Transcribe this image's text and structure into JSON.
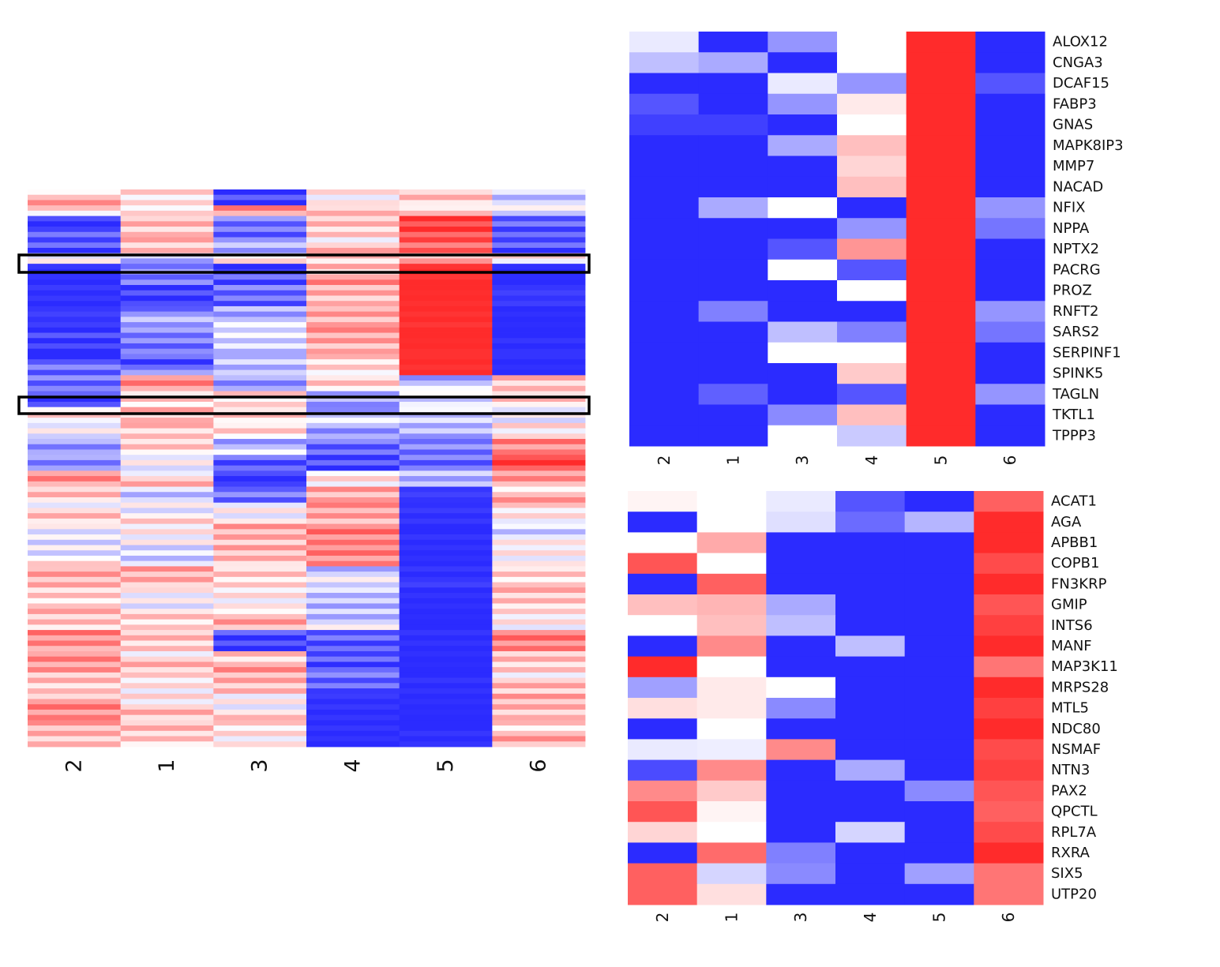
{
  "colors": {
    "low": "#2b2bff",
    "mid": "#ffffff",
    "high": "#ff2b2b",
    "highlight_box": "#000000"
  },
  "chart_data": [
    {
      "id": "overview",
      "type": "heatmap",
      "title": "",
      "columns": [
        "2",
        "1",
        "3",
        "4",
        "5",
        "6"
      ],
      "note": "Overview heatmap of many genes; values are approximate row-band levels (-1 = blue, +1 = red).",
      "bands": [
        {
          "rows": 3,
          "values": [
            0.3,
            0.25,
            -0.8,
            0.1,
            0.3,
            -0.3
          ]
        },
        {
          "rows": 2,
          "values": [
            0.1,
            0.05,
            0.4,
            0.15,
            0.35,
            0.0
          ]
        },
        {
          "rows": 4,
          "values": [
            -0.9,
            0.4,
            -0.6,
            0.3,
            0.9,
            -0.8
          ]
        },
        {
          "rows": 3,
          "values": [
            -0.85,
            0.2,
            -0.5,
            0.2,
            0.85,
            -0.7
          ]
        },
        {
          "rows": 2,
          "values": [
            0.05,
            -0.3,
            0.1,
            0.2,
            0.3,
            0.0
          ]
        },
        {
          "rows": 4,
          "values": [
            -1.0,
            -0.7,
            -0.9,
            0.4,
            1.0,
            -1.0
          ]
        },
        {
          "rows": 4,
          "values": [
            -0.95,
            -0.9,
            -0.7,
            0.3,
            1.0,
            -0.95
          ]
        },
        {
          "rows": 4,
          "values": [
            -0.95,
            -0.5,
            -0.3,
            0.5,
            1.0,
            -1.0
          ]
        },
        {
          "rows": 5,
          "values": [
            -0.9,
            -0.6,
            -0.2,
            0.35,
            1.0,
            -1.0
          ]
        },
        {
          "rows": 4,
          "values": [
            -0.8,
            -0.7,
            -0.2,
            0.25,
            1.0,
            -1.0
          ]
        },
        {
          "rows": 3,
          "values": [
            -0.7,
            0.5,
            -0.6,
            0.1,
            -0.3,
            0.4
          ]
        },
        {
          "rows": 3,
          "values": [
            -0.8,
            0.3,
            0.2,
            -0.4,
            -0.2,
            0.2
          ]
        },
        {
          "rows": 3,
          "values": [
            0.1,
            0.2,
            0.1,
            -0.3,
            -0.1,
            0.05
          ]
        },
        {
          "rows": 3,
          "values": [
            0.05,
            0.3,
            0.2,
            -0.5,
            -0.4,
            0.0
          ]
        },
        {
          "rows": 3,
          "values": [
            -0.6,
            0.1,
            -0.3,
            -0.6,
            -0.5,
            0.6
          ]
        },
        {
          "rows": 3,
          "values": [
            -0.5,
            0.0,
            -0.8,
            -0.9,
            -0.8,
            0.8
          ]
        },
        {
          "rows": 3,
          "values": [
            0.4,
            0.2,
            -0.9,
            0.2,
            -0.3,
            0.5
          ]
        },
        {
          "rows": 3,
          "values": [
            0.3,
            -0.3,
            -0.7,
            0.3,
            -0.95,
            0.3
          ]
        },
        {
          "rows": 4,
          "values": [
            0.15,
            0.05,
            0.1,
            0.5,
            -0.95,
            0.1
          ]
        },
        {
          "rows": 4,
          "values": [
            -0.1,
            0.0,
            0.3,
            0.5,
            -1.0,
            -0.1
          ]
        },
        {
          "rows": 4,
          "values": [
            0.0,
            -0.1,
            0.4,
            0.6,
            -1.0,
            0.0
          ]
        },
        {
          "rows": 4,
          "values": [
            0.35,
            0.3,
            0.1,
            -0.2,
            -0.95,
            0.3
          ]
        },
        {
          "rows": 4,
          "values": [
            0.3,
            0.05,
            0.1,
            -0.3,
            -1.0,
            0.2
          ]
        },
        {
          "rows": 4,
          "values": [
            0.2,
            0.1,
            0.3,
            -0.2,
            -1.0,
            0.15
          ]
        },
        {
          "rows": 4,
          "values": [
            0.6,
            0.3,
            -0.9,
            -0.8,
            -1.0,
            0.5
          ]
        },
        {
          "rows": 4,
          "values": [
            0.4,
            0.2,
            0.35,
            -0.7,
            -1.0,
            0.3
          ]
        },
        {
          "rows": 4,
          "values": [
            0.3,
            0.1,
            0.3,
            -0.8,
            -1.0,
            0.2
          ]
        },
        {
          "rows": 5,
          "values": [
            0.45,
            0.2,
            0.1,
            -0.95,
            -1.0,
            0.35
          ]
        },
        {
          "rows": 5,
          "values": [
            0.35,
            0.25,
            0.05,
            -1.0,
            -1.0,
            0.3
          ]
        }
      ],
      "highlight_boxes": [
        "upper",
        "lower"
      ]
    },
    {
      "id": "cluster_top",
      "type": "heatmap",
      "title": "",
      "columns": [
        "2",
        "1",
        "3",
        "4",
        "5",
        "6"
      ],
      "rows": [
        "ALOX12",
        "CNGA3",
        "DCAF15",
        "FABP3",
        "GNAS",
        "MAPK8IP3",
        "MMP7",
        "NACAD",
        "NFIX",
        "NPPA",
        "NPTX2",
        "PACRG",
        "PROZ",
        "RNFT2",
        "SARS2",
        "SERPINF1",
        "SPINK5",
        "TAGLN",
        "TKTL1",
        "TPPP3"
      ],
      "values": [
        [
          -0.1,
          -1.0,
          -0.5,
          0.0,
          1.0,
          -1.0
        ],
        [
          -0.3,
          -0.4,
          -1.0,
          0.0,
          1.0,
          -1.0
        ],
        [
          -1.0,
          -1.0,
          -0.1,
          -0.5,
          1.0,
          -0.8
        ],
        [
          -0.8,
          -1.0,
          -0.5,
          0.1,
          1.0,
          -1.0
        ],
        [
          -0.9,
          -0.9,
          -1.0,
          0.0,
          1.0,
          -1.0
        ],
        [
          -1.0,
          -1.0,
          -0.4,
          0.3,
          1.0,
          -1.0
        ],
        [
          -1.0,
          -1.0,
          -1.0,
          0.2,
          1.0,
          -1.0
        ],
        [
          -1.0,
          -1.0,
          -1.0,
          0.3,
          1.0,
          -1.0
        ],
        [
          -1.0,
          -0.4,
          0.0,
          -1.0,
          1.0,
          -0.5
        ],
        [
          -1.0,
          -1.0,
          -1.0,
          -0.5,
          1.0,
          -0.65
        ],
        [
          -1.0,
          -1.0,
          -0.8,
          0.5,
          1.0,
          -1.0
        ],
        [
          -1.0,
          -1.0,
          0.0,
          -0.8,
          1.0,
          -1.0
        ],
        [
          -1.0,
          -1.0,
          -1.0,
          0.0,
          1.0,
          -1.0
        ],
        [
          -1.0,
          -0.6,
          -1.0,
          -1.0,
          1.0,
          -0.5
        ],
        [
          -1.0,
          -1.0,
          -0.3,
          -0.6,
          1.0,
          -0.65
        ],
        [
          -1.0,
          -1.0,
          0.0,
          0.0,
          1.0,
          -1.0
        ],
        [
          -1.0,
          -1.0,
          -1.0,
          0.25,
          1.0,
          -1.0
        ],
        [
          -1.0,
          -0.75,
          -1.0,
          -0.8,
          1.0,
          -0.5
        ],
        [
          -1.0,
          -1.0,
          -0.55,
          0.3,
          1.0,
          -1.0
        ],
        [
          -1.0,
          -1.0,
          0.0,
          -0.25,
          1.0,
          -1.0
        ]
      ]
    },
    {
      "id": "cluster_bottom",
      "type": "heatmap",
      "title": "",
      "columns": [
        "2",
        "1",
        "3",
        "4",
        "5",
        "6"
      ],
      "rows": [
        "ACAT1",
        "AGA",
        "APBB1",
        "COPB1",
        "FN3KRP",
        "GMIP",
        "INTS6",
        "MANF",
        "MAP3K11",
        "MRPS28",
        "MTL5",
        "NDC80",
        "NSMAF",
        "NTN3",
        "PAX2",
        "QPCTL",
        "RPL7A",
        "RXRA",
        "SIX5",
        "UTP20"
      ],
      "values": [
        [
          0.05,
          0.0,
          -0.1,
          -0.8,
          -1.0,
          0.75
        ],
        [
          -1.0,
          0.0,
          -0.15,
          -0.7,
          -0.35,
          1.0
        ],
        [
          0.0,
          0.4,
          -1.0,
          -1.0,
          -1.0,
          1.0
        ],
        [
          0.8,
          0.0,
          -1.0,
          -1.0,
          -1.0,
          0.85
        ],
        [
          -1.0,
          0.75,
          -1.0,
          -1.0,
          -1.0,
          1.0
        ],
        [
          0.3,
          0.35,
          -0.4,
          -1.0,
          -1.0,
          0.8
        ],
        [
          0.0,
          0.3,
          -0.3,
          -1.0,
          -1.0,
          0.9
        ],
        [
          -1.0,
          0.55,
          -1.0,
          -0.3,
          -1.0,
          1.0
        ],
        [
          1.0,
          0.0,
          -1.0,
          -1.0,
          -1.0,
          0.65
        ],
        [
          -0.45,
          0.1,
          0.0,
          -1.0,
          -1.0,
          1.0
        ],
        [
          0.15,
          0.1,
          -0.55,
          -1.0,
          -1.0,
          0.9
        ],
        [
          -1.0,
          0.0,
          -1.0,
          -1.0,
          -1.0,
          1.0
        ],
        [
          -0.1,
          -0.08,
          0.55,
          -1.0,
          -1.0,
          0.85
        ],
        [
          -0.85,
          0.55,
          -1.0,
          -0.4,
          -1.0,
          0.9
        ],
        [
          0.55,
          0.25,
          -1.0,
          -1.0,
          -0.55,
          0.8
        ],
        [
          0.8,
          0.05,
          -1.0,
          -1.0,
          -1.0,
          0.75
        ],
        [
          0.2,
          0.0,
          -1.0,
          -0.2,
          -1.0,
          0.85
        ],
        [
          -1.0,
          0.7,
          -0.6,
          -1.0,
          -1.0,
          1.0
        ],
        [
          0.75,
          -0.2,
          -0.55,
          -1.0,
          -0.45,
          0.65
        ],
        [
          0.75,
          0.15,
          -1.0,
          -1.0,
          -1.0,
          0.65
        ]
      ]
    }
  ]
}
